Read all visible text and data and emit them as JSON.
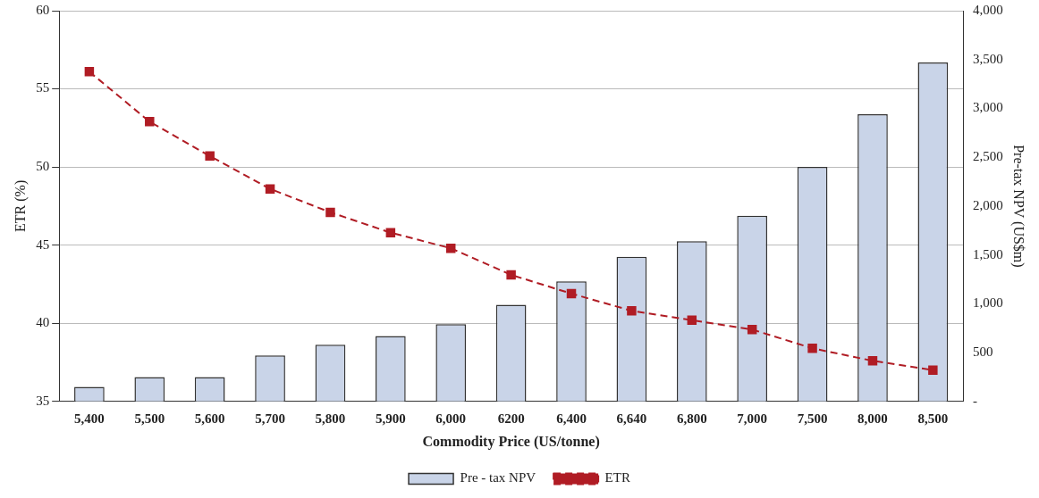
{
  "chart_data": {
    "type": "bar",
    "xlabel": "Commodity Price (US/tonne)",
    "ylabel": "ETR (%)",
    "y2label": "Pre-tax NPV (US$m)",
    "categories": [
      "5,400",
      "5,500",
      "5,600",
      "5,700",
      "5,800",
      "5,900",
      "6,000",
      "6200",
      "6,400",
      "6,640",
      "6,800",
      "7,000",
      "7,500",
      "8,000",
      "8,500"
    ],
    "series": [
      {
        "name": "Pre - tax NPV",
        "axis": "y2",
        "color": "#c9d4e8",
        "values": [
          150,
          250,
          250,
          470,
          580,
          670,
          790,
          990,
          1230,
          1480,
          1640,
          1900,
          2400,
          2940,
          3470
        ]
      },
      {
        "name": "ETR",
        "type": "line",
        "axis": "y",
        "color": "#b01c24",
        "marker": "square",
        "line_style": "dashed",
        "values": [
          56.1,
          52.9,
          50.7,
          48.6,
          47.1,
          45.8,
          44.8,
          43.1,
          41.9,
          40.8,
          40.2,
          39.6,
          38.4,
          37.6,
          37.0
        ]
      }
    ],
    "ylim": [
      35,
      60
    ],
    "yticks": [
      35,
      40,
      45,
      50,
      55,
      60
    ],
    "y2lim": [
      0,
      4000
    ],
    "y2ticks": [
      {
        "value": 0,
        "label": "-"
      },
      500,
      {
        "value": 1000,
        "label": "1,000"
      },
      {
        "value": 1500,
        "label": "1,500"
      },
      {
        "value": 2000,
        "label": "2,000"
      },
      {
        "value": 2500,
        "label": "2,500"
      },
      {
        "value": 3000,
        "label": "3,000"
      },
      {
        "value": 3500,
        "label": "3,500"
      },
      {
        "value": 4000,
        "label": "4,000"
      }
    ],
    "grid": "y",
    "legend": "bottom"
  }
}
